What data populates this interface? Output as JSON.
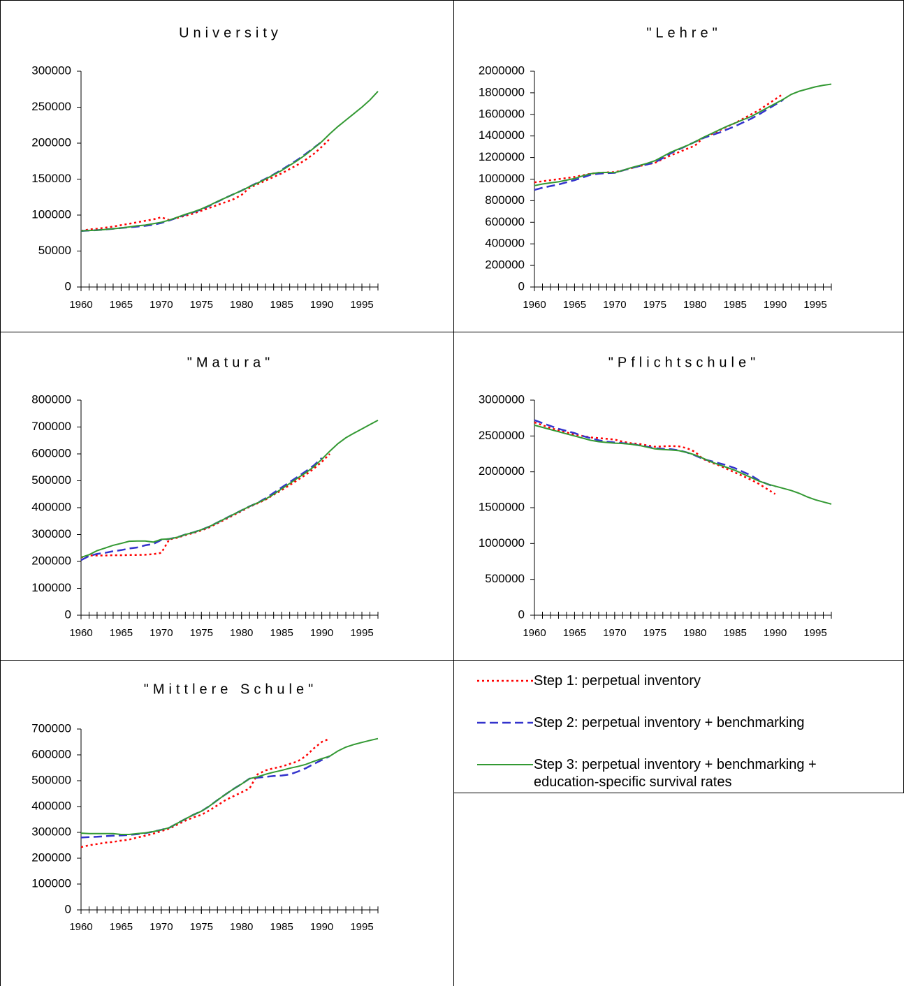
{
  "chart_data": [
    {
      "type": "line",
      "title": "University",
      "x": [
        1960,
        1961,
        1962,
        1963,
        1964,
        1965,
        1966,
        1967,
        1968,
        1969,
        1970,
        1971,
        1972,
        1973,
        1974,
        1975,
        1976,
        1977,
        1978,
        1979,
        1980,
        1981,
        1982,
        1983,
        1984,
        1985,
        1986,
        1987,
        1988,
        1989,
        1990,
        1991,
        1992,
        1993,
        1994,
        1995,
        1996,
        1997
      ],
      "xlim": [
        1960,
        1997
      ],
      "xticks": [
        1960,
        1965,
        1970,
        1975,
        1980,
        1985,
        1990,
        1995
      ],
      "ylim": [
        0,
        300000
      ],
      "yticks": [
        0,
        50000,
        100000,
        150000,
        200000,
        250000,
        300000
      ],
      "series": [
        {
          "name": "Step 1: perpetual inventory",
          "color": "#ff0000",
          "style": "dotted",
          "values": [
            78000,
            80000,
            81000,
            82500,
            84000,
            86000,
            88000,
            90000,
            92000,
            94000,
            97000,
            93000,
            96000,
            99000,
            102000,
            106000,
            110000,
            114000,
            118000,
            122000,
            128000,
            138000,
            143000,
            148000,
            153000,
            158000,
            164000,
            170000,
            177000,
            185000,
            195000,
            206000,
            null,
            null,
            null,
            null,
            null,
            null
          ]
        },
        {
          "name": "Step 2: perpetual inventory + benchmarking",
          "color": "#3333cc",
          "style": "dashed",
          "values": [
            78000,
            78500,
            79000,
            80000,
            81000,
            82000,
            83000,
            84000,
            85000,
            86500,
            89000,
            92500,
            96500,
            100500,
            104000,
            108000,
            113000,
            118500,
            124000,
            129000,
            134000,
            139500,
            145000,
            150500,
            156500,
            163000,
            170000,
            177000,
            185000,
            193500,
            202000,
            null,
            null,
            null,
            null,
            null,
            null,
            null
          ]
        },
        {
          "name": "Step 3: perpetual inventory + benchmarking + education-specific survival rates",
          "color": "#339933",
          "style": "solid",
          "values": [
            78000,
            78500,
            79000,
            80000,
            81000,
            82000,
            83500,
            85000,
            86000,
            88000,
            90000,
            93000,
            97000,
            101000,
            104500,
            108500,
            113500,
            119000,
            124000,
            129000,
            134000,
            139500,
            144500,
            150000,
            156000,
            162000,
            169000,
            176000,
            184000,
            193000,
            202000,
            213000,
            223000,
            232000,
            241000,
            250000,
            260000,
            272000
          ]
        }
      ]
    },
    {
      "type": "line",
      "title": "\"Lehre\"",
      "x": [
        1960,
        1961,
        1962,
        1963,
        1964,
        1965,
        1966,
        1967,
        1968,
        1969,
        1970,
        1971,
        1972,
        1973,
        1974,
        1975,
        1976,
        1977,
        1978,
        1979,
        1980,
        1981,
        1982,
        1983,
        1984,
        1985,
        1986,
        1987,
        1988,
        1989,
        1990,
        1991,
        1992,
        1993,
        1994,
        1995,
        1996,
        1997
      ],
      "xlim": [
        1960,
        1997
      ],
      "xticks": [
        1960,
        1965,
        1970,
        1975,
        1980,
        1985,
        1990,
        1995
      ],
      "ylim": [
        0,
        2000000
      ],
      "yticks": [
        0,
        200000,
        400000,
        600000,
        800000,
        1000000,
        1200000,
        1400000,
        1600000,
        1800000,
        2000000
      ],
      "series": [
        {
          "color": "#ff0000",
          "style": "dotted",
          "values": [
            970000,
            980000,
            990000,
            1000000,
            1010000,
            1020000,
            1035000,
            1050000,
            1058000,
            1062000,
            1065000,
            1080000,
            1100000,
            1120000,
            1135000,
            1150000,
            1185000,
            1220000,
            1250000,
            1280000,
            1310000,
            1380000,
            1415000,
            1450000,
            1485000,
            1520000,
            1560000,
            1600000,
            1640000,
            1690000,
            1740000,
            1790000,
            null,
            null,
            null,
            null,
            null,
            null
          ]
        },
        {
          "color": "#3333cc",
          "style": "dashed",
          "values": [
            900000,
            920000,
            935000,
            950000,
            970000,
            990000,
            1015000,
            1040000,
            1050000,
            1055000,
            1058000,
            1080000,
            1100000,
            1120000,
            1135000,
            1155000,
            1195000,
            1240000,
            1275000,
            1310000,
            1345000,
            1380000,
            1405000,
            1430000,
            1460000,
            1490000,
            1525000,
            1560000,
            1600000,
            1645000,
            1690000,
            1735000,
            null,
            null,
            null,
            null,
            null,
            null
          ]
        },
        {
          "color": "#339933",
          "style": "solid",
          "values": [
            940000,
            955000,
            965000,
            975000,
            990000,
            1005000,
            1030000,
            1050000,
            1060000,
            1062000,
            1060000,
            1080000,
            1105000,
            1125000,
            1145000,
            1170000,
            1210000,
            1250000,
            1280000,
            1310000,
            1345000,
            1385000,
            1420000,
            1455000,
            1490000,
            1520000,
            1550000,
            1580000,
            1620000,
            1660000,
            1700000,
            1740000,
            1785000,
            1815000,
            1835000,
            1855000,
            1870000,
            1880000
          ]
        }
      ]
    },
    {
      "type": "line",
      "title": "\"Matura\"",
      "x": [
        1960,
        1961,
        1962,
        1963,
        1964,
        1965,
        1966,
        1967,
        1968,
        1969,
        1970,
        1971,
        1972,
        1973,
        1974,
        1975,
        1976,
        1977,
        1978,
        1979,
        1980,
        1981,
        1982,
        1983,
        1984,
        1985,
        1986,
        1987,
        1988,
        1989,
        1990,
        1991,
        1992,
        1993,
        1994,
        1995,
        1996,
        1997
      ],
      "xlim": [
        1960,
        1997
      ],
      "xticks": [
        1960,
        1965,
        1970,
        1975,
        1980,
        1985,
        1990,
        1995
      ],
      "ylim": [
        0,
        800000
      ],
      "yticks": [
        0,
        100000,
        200000,
        300000,
        400000,
        500000,
        600000,
        700000,
        800000
      ],
      "series": [
        {
          "color": "#ff0000",
          "style": "dotted",
          "values": [
            215000,
            222000,
            222000,
            222000,
            223000,
            223000,
            224000,
            224000,
            225000,
            227000,
            232000,
            282000,
            288000,
            298000,
            306000,
            315000,
            327000,
            342000,
            357000,
            372000,
            387000,
            403000,
            416000,
            430000,
            448000,
            465000,
            484000,
            503000,
            522000,
            545000,
            570000,
            600000,
            null,
            null,
            null,
            null,
            null,
            null
          ]
        },
        {
          "color": "#3333cc",
          "style": "dashed",
          "values": [
            205000,
            220000,
            228000,
            232000,
            238000,
            242000,
            248000,
            252000,
            260000,
            265000,
            280000,
            284000,
            290000,
            300000,
            308000,
            318000,
            330000,
            345000,
            360000,
            375000,
            390000,
            405000,
            418000,
            435000,
            455000,
            475000,
            495000,
            515000,
            535000,
            557000,
            585000,
            null,
            null,
            null,
            null,
            null,
            null,
            null
          ]
        },
        {
          "color": "#339933",
          "style": "solid",
          "values": [
            215000,
            225000,
            240000,
            250000,
            260000,
            267000,
            275000,
            276000,
            276000,
            272000,
            282000,
            284000,
            290000,
            300000,
            308000,
            318000,
            330000,
            345000,
            360000,
            375000,
            390000,
            405000,
            418000,
            432000,
            450000,
            470000,
            490000,
            510000,
            530000,
            552000,
            580000,
            610000,
            638000,
            660000,
            677000,
            693000,
            709000,
            725000
          ]
        }
      ]
    },
    {
      "type": "line",
      "title": "\"Pflichtschule\"",
      "x": [
        1960,
        1961,
        1962,
        1963,
        1964,
        1965,
        1966,
        1967,
        1968,
        1969,
        1970,
        1971,
        1972,
        1973,
        1974,
        1975,
        1976,
        1977,
        1978,
        1979,
        1980,
        1981,
        1982,
        1983,
        1984,
        1985,
        1986,
        1987,
        1988,
        1989,
        1990,
        1991,
        1992,
        1993,
        1994,
        1995,
        1996,
        1997
      ],
      "xlim": [
        1960,
        1997
      ],
      "xticks": [
        1960,
        1965,
        1970,
        1975,
        1980,
        1985,
        1990,
        1995
      ],
      "ylim": [
        0,
        3000000
      ],
      "yticks": [
        0,
        500000,
        1000000,
        1500000,
        2000000,
        2500000,
        3000000
      ],
      "series": [
        {
          "color": "#ff0000",
          "style": "dotted",
          "values": [
            2690000,
            2650000,
            2610000,
            2580000,
            2550000,
            2520000,
            2500000,
            2480000,
            2470000,
            2460000,
            2450000,
            2420000,
            2400000,
            2390000,
            2370000,
            2350000,
            2355000,
            2360000,
            2355000,
            2330000,
            2280000,
            2180000,
            2130000,
            2090000,
            2040000,
            1990000,
            1940000,
            1890000,
            1830000,
            1760000,
            1690000,
            null,
            null,
            null,
            null,
            null,
            null,
            null
          ]
        },
        {
          "color": "#3333cc",
          "style": "dashed",
          "values": [
            2720000,
            2680000,
            2640000,
            2600000,
            2570000,
            2540000,
            2500000,
            2470000,
            2440000,
            2420000,
            2410000,
            2400000,
            2390000,
            2370000,
            2350000,
            2330000,
            2320000,
            2315000,
            2300000,
            2270000,
            2230000,
            2180000,
            2150000,
            2120000,
            2090000,
            2050000,
            2000000,
            1950000,
            1880000,
            1830000,
            1790000,
            null,
            null,
            null,
            null,
            null,
            null,
            null
          ]
        },
        {
          "color": "#339933",
          "style": "solid",
          "values": [
            2650000,
            2620000,
            2590000,
            2560000,
            2530000,
            2500000,
            2470000,
            2440000,
            2420000,
            2410000,
            2400000,
            2395000,
            2385000,
            2370000,
            2345000,
            2320000,
            2310000,
            2305000,
            2295000,
            2270000,
            2235000,
            2190000,
            2140000,
            2100000,
            2060000,
            2020000,
            1970000,
            1920000,
            1870000,
            1830000,
            1800000,
            1770000,
            1740000,
            1700000,
            1650000,
            1610000,
            1580000,
            1550000
          ]
        }
      ]
    },
    {
      "type": "line",
      "title": "\"Mittlere Schule\"",
      "x": [
        1960,
        1961,
        1962,
        1963,
        1964,
        1965,
        1966,
        1967,
        1968,
        1969,
        1970,
        1971,
        1972,
        1973,
        1974,
        1975,
        1976,
        1977,
        1978,
        1979,
        1980,
        1981,
        1982,
        1983,
        1984,
        1985,
        1986,
        1987,
        1988,
        1989,
        1990,
        1991,
        1992,
        1993,
        1994,
        1995,
        1996,
        1997
      ],
      "xlim": [
        1960,
        1997
      ],
      "xticks": [
        1960,
        1965,
        1970,
        1975,
        1980,
        1985,
        1990,
        1995
      ],
      "ylim": [
        0,
        700000
      ],
      "yticks": [
        0,
        100000,
        200000,
        300000,
        400000,
        500000,
        600000,
        700000
      ],
      "series": [
        {
          "color": "#ff0000",
          "style": "dotted",
          "values": [
            243000,
            250000,
            255000,
            260000,
            263000,
            268000,
            272000,
            280000,
            287000,
            295000,
            305000,
            315000,
            330000,
            345000,
            358000,
            368000,
            385000,
            405000,
            425000,
            440000,
            455000,
            470000,
            525000,
            540000,
            548000,
            555000,
            565000,
            575000,
            595000,
            625000,
            650000,
            663000,
            null,
            null,
            null,
            null,
            null,
            null
          ]
        },
        {
          "color": "#3333cc",
          "style": "dashed",
          "values": [
            280000,
            282000,
            283000,
            285000,
            287000,
            288000,
            290000,
            293000,
            297000,
            303000,
            310000,
            318000,
            335000,
            352000,
            368000,
            382000,
            402000,
            425000,
            447000,
            468000,
            487000,
            508000,
            512000,
            515000,
            518000,
            520000,
            524000,
            535000,
            548000,
            565000,
            580000,
            595000,
            null,
            null,
            null,
            null,
            null,
            null
          ]
        },
        {
          "color": "#339933",
          "style": "solid",
          "values": [
            297000,
            295000,
            295000,
            295000,
            295000,
            292000,
            292000,
            295000,
            298000,
            303000,
            310000,
            318000,
            335000,
            352000,
            368000,
            382000,
            402000,
            425000,
            447000,
            468000,
            487000,
            508000,
            515000,
            525000,
            533000,
            540000,
            548000,
            555000,
            563000,
            575000,
            585000,
            595000,
            615000,
            630000,
            640000,
            648000,
            656000,
            663000
          ]
        }
      ]
    }
  ]
}
